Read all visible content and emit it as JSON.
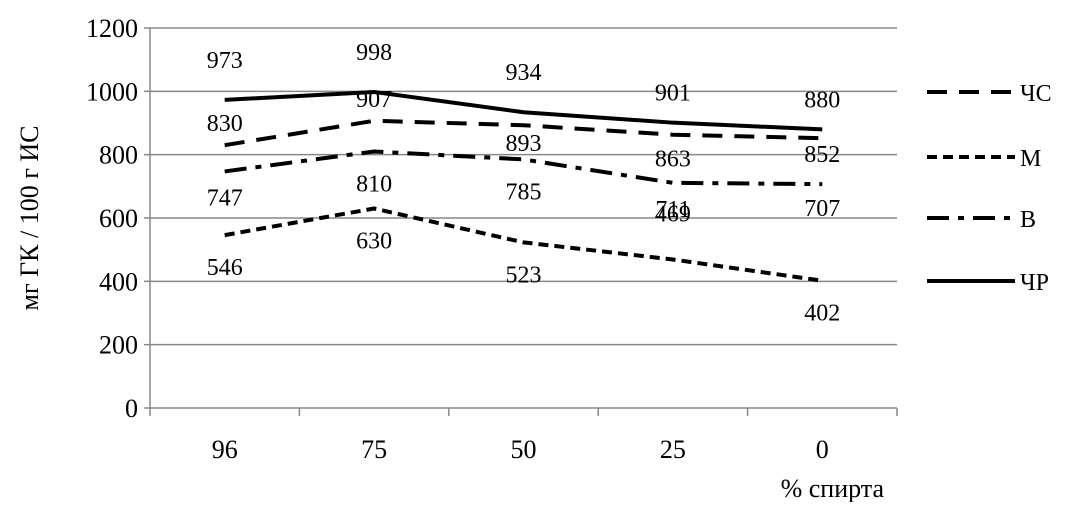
{
  "chart_data": {
    "type": "line",
    "title": "",
    "xlabel": "% спирта",
    "ylabel": "мг ГК / 100 г ИС",
    "categories": [
      "96",
      "75",
      "50",
      "25",
      "0"
    ],
    "ylim": [
      0,
      1200
    ],
    "yticks": [
      0,
      200,
      400,
      600,
      800,
      1000,
      1200
    ],
    "grid": "horizontal",
    "legend_position": "right",
    "series": [
      {
        "name": "ЧС",
        "style": "dashed",
        "values": [
          830,
          907,
          893,
          863,
          852
        ]
      },
      {
        "name": "М",
        "style": "short-dashed",
        "values": [
          546,
          630,
          523,
          469,
          402
        ]
      },
      {
        "name": "В",
        "style": "dash-dot",
        "values": [
          747,
          810,
          785,
          711,
          707
        ]
      },
      {
        "name": "ЧР",
        "style": "solid",
        "values": [
          973,
          998,
          934,
          901,
          880
        ]
      }
    ],
    "colors": {
      "line": "#000000",
      "grid": "#888888",
      "background": "#ffffff"
    }
  }
}
